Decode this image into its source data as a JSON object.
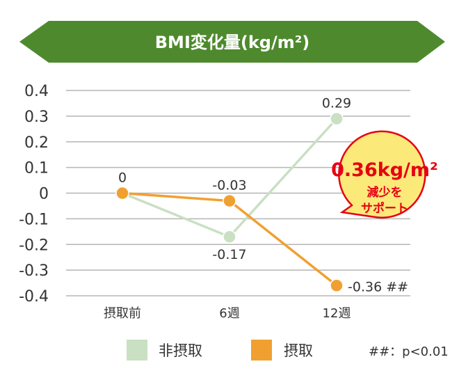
{
  "chart_data": {
    "type": "line",
    "title": "BMI変化量(kg/m²)",
    "categories": [
      "摂取前",
      "6週",
      "12週"
    ],
    "ylim": [
      -0.4,
      0.4
    ],
    "yticks": [
      "0.4",
      "0.3",
      "0.2",
      "0.1",
      "0",
      "-0.1",
      "-0.2",
      "-0.3",
      "-0.4"
    ],
    "grid": true,
    "series": [
      {
        "name": "非摂取",
        "color": "#c9e0c3",
        "values": [
          0,
          -0.17,
          0.29
        ],
        "labels": [
          "",
          "-0.17",
          "0.29"
        ]
      },
      {
        "name": "摂取",
        "color": "#f0a030",
        "values": [
          0,
          -0.03,
          -0.36
        ],
        "labels": [
          "0",
          "-0.03",
          "-0.36 ##"
        ]
      }
    ],
    "callout": {
      "value": "0.36kg/m²",
      "line1": "減少を",
      "line2": "サポート",
      "color": "#e60012",
      "fill": "#fbe97a"
    },
    "note": "##：p<0.01",
    "title_banner_color": "#4e8a2d"
  }
}
